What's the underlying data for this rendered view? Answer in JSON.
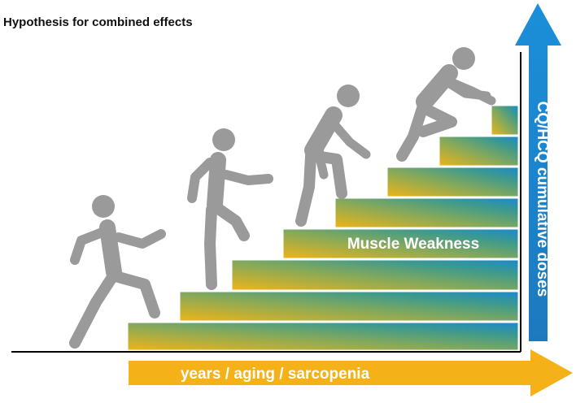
{
  "title": "Hypothesis for combined effects",
  "labels": {
    "steps": "Muscle Weakness",
    "x_arrow": "years / aging / sarcopenia",
    "y_arrow": "CQ/HCQ cumulative doses"
  },
  "colors": {
    "bottom_step": "#f2b416",
    "top_step": "#1a88d0",
    "x_arrow": "#f4b118",
    "y_arrow": "#1b84cc",
    "figure": "#9a9a9a",
    "axis": "#000000"
  },
  "figures": [
    "walking-person",
    "stooping-person",
    "bent-person",
    "crawling-person"
  ]
}
